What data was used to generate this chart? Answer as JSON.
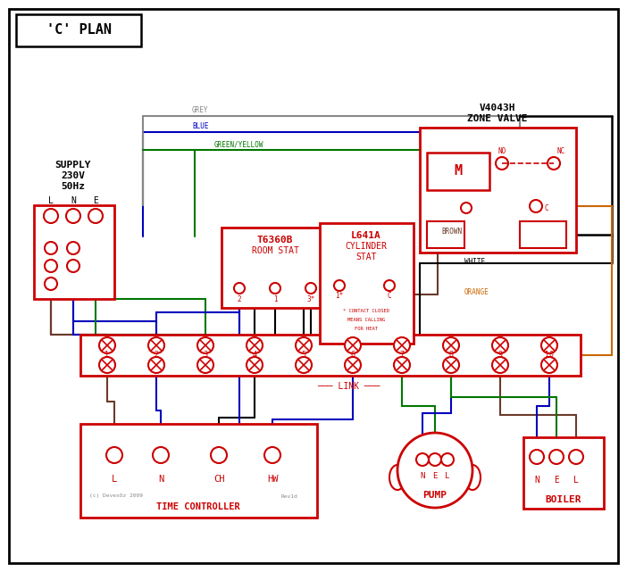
{
  "title": "'C' PLAN",
  "red": "#cc0000",
  "blue": "#0000bb",
  "green": "#007700",
  "brown": "#6b3a2a",
  "grey": "#888888",
  "orange": "#cc6600",
  "black": "#000000",
  "supply_text": "SUPPLY\n230V\n50Hz",
  "zone_valve_label": "V4043H\nZONE VALVE",
  "room_stat_label": "T6360B\nROOM STAT",
  "cyl_stat_label": "L641A\nCYLINDER\nSTAT",
  "time_ctrl_label": "TIME CONTROLLER",
  "pump_label": "PUMP",
  "boiler_label": "BOILER",
  "link_label": "LINK",
  "copyright": "(c) DevexOz 2009",
  "rev": "Rev1d"
}
